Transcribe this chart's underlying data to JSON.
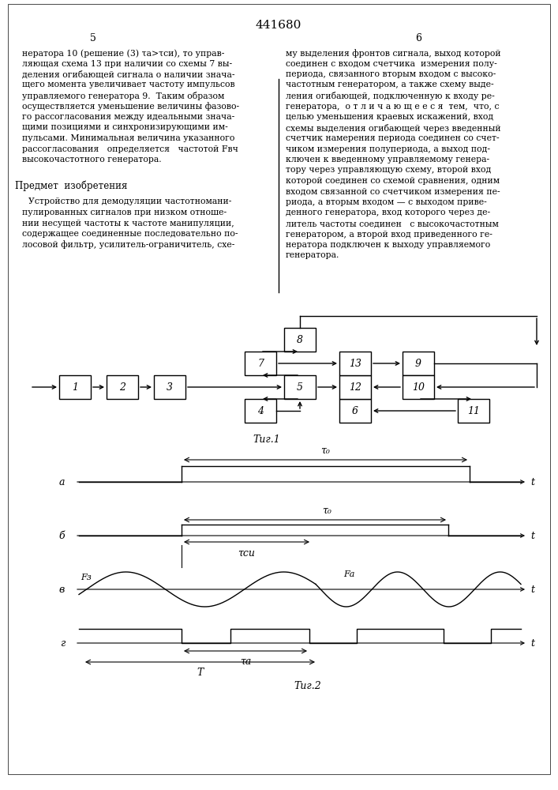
{
  "title": "441680",
  "page_left": "5",
  "page_right": "6",
  "text_left": [
    "нератора 10 (решение (3) τа>τси), то управ-",
    "ляющая схема 13 при наличии со схемы 7 вы-",
    "деления огибающей сигнала о наличии знача-",
    "щего момента увеличивает частоту импульсов",
    "управляемого генератора 9.  Таким образом",
    "осуществляется уменьшение величины фазово-",
    "го рассогласования между идеальными знача-",
    "щими позициями и синхронизирующими им-",
    "пульсами. Минимальная величина указанного",
    "рассогласования   определяется   частотой Fвч",
    "высокочастотного генератора."
  ],
  "text_subject": "Предмет  изобретения",
  "text_body_left": [
    "Устройство для демодуляции частотномани-",
    "пулированных сигналов при низком отноше-",
    "нии несущей частоты к частоте манипуляции,",
    "содержащее соединенные последовательно по-",
    "лосовой фильтр, усилитель-ограничитель, схе-"
  ],
  "text_right": [
    "му выделения фронтов сигнала, выход которой",
    "соединен с входом счетчика  измерения полу-",
    "периода, связанного вторым входом с высоко-",
    "частотным генератором, а также схему выде-",
    "ления огибающей, подключенную к входу ре-",
    "генератора,  о т л и ч а ю щ е е с я  тем,  что, с",
    "целью уменьшения краевых искажений, вход",
    "схемы выделения огибающей через введенный",
    "счетчик намерения периода соединен со счет-",
    "чиком измерения полупериода, а выход под-",
    "ключен к введенному управляемому генера-",
    "тору через управляющую схему, второй вход",
    "которой соединен со схемой сравнения, одним",
    "входом связанной со счетчиком измерения пе-",
    "риода, а вторым входом — с выходом приве-",
    "денного генератора, вход которого через де-",
    "литель частоты соединен   с высокочастотным",
    "генератором, а второй вход приведенного ге-",
    "нератора подключен к выходу управляемого",
    "генератора."
  ],
  "fig1_label": "Τиг.1",
  "fig2_label": "Τиг.2",
  "bg_color": "#ffffff",
  "text_color": "#000000",
  "line_color": "#000000",
  "signal_labels_left": [
    "a",
    "б",
    "в",
    "г"
  ],
  "tau0_label": "τ₀",
  "tau_ci_label": "τси",
  "tau_a_label": "τа",
  "T_label": "T",
  "Fz_label": "Fз",
  "Fa_label": "Fа",
  "t_label": "t"
}
